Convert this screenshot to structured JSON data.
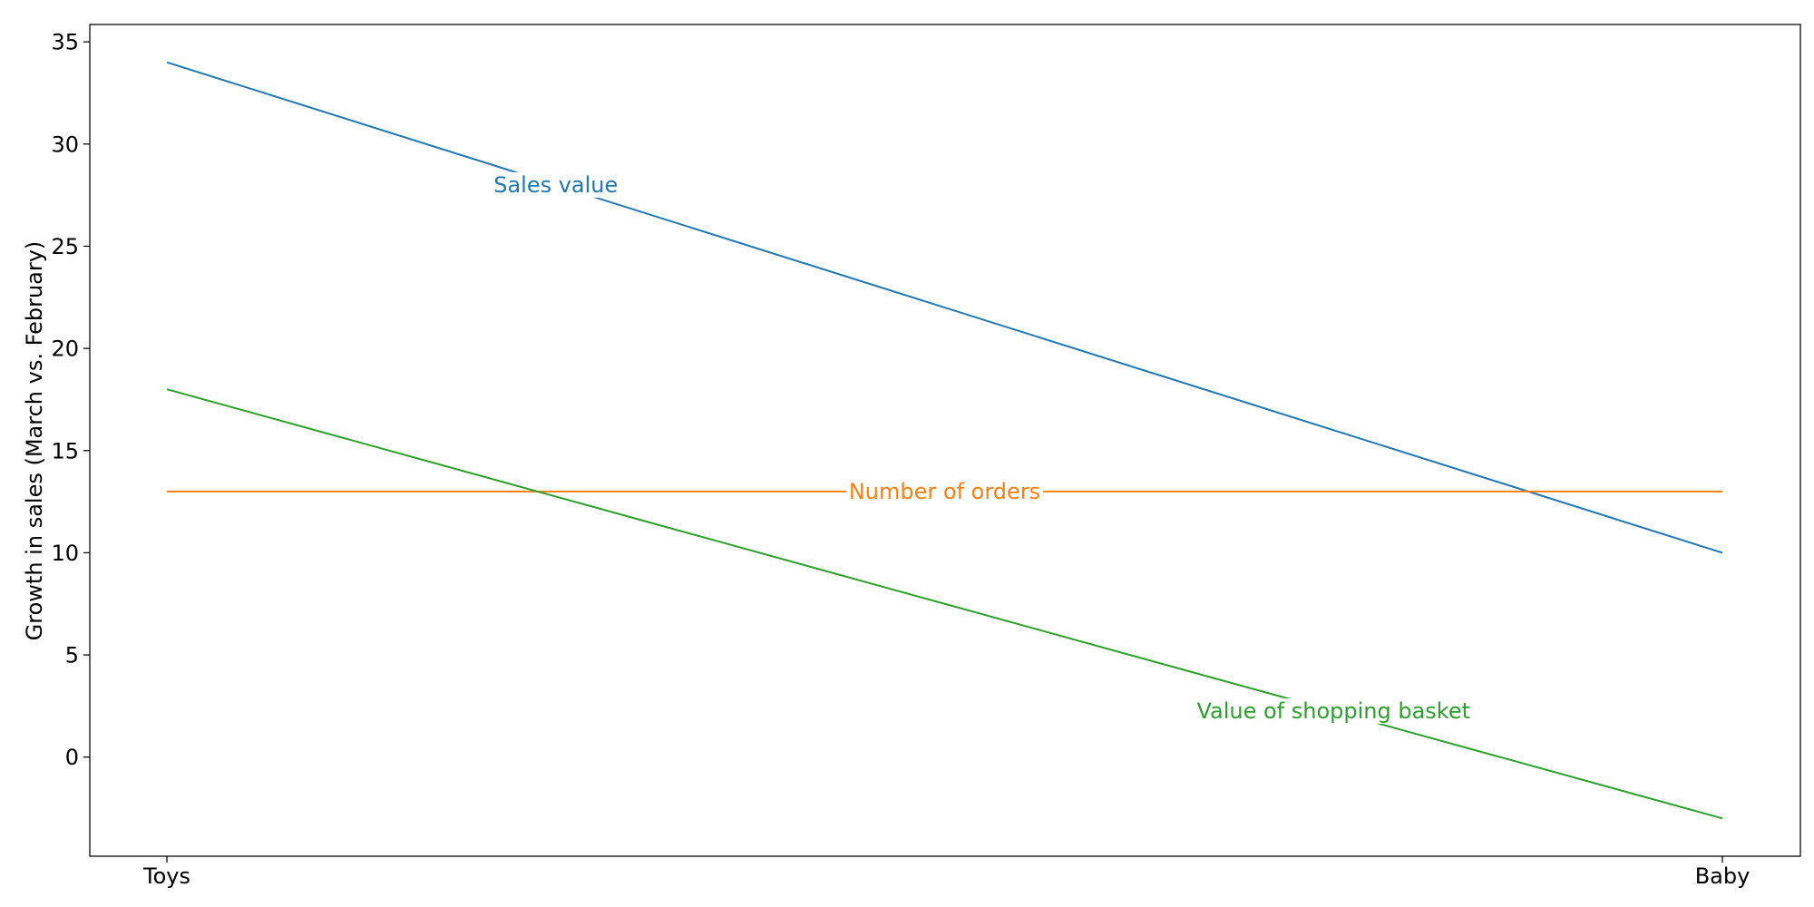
{
  "chart_data": {
    "type": "line",
    "categories": [
      "Toys",
      "Baby"
    ],
    "ylabel": "Growth in sales (March vs. February)",
    "xlabel": "",
    "ylim": [
      -4.85,
      35.85
    ],
    "yticks": [
      0,
      5,
      10,
      15,
      20,
      25,
      30,
      35
    ],
    "grid": false,
    "series": [
      {
        "name": "Sales value",
        "values": [
          34,
          10
        ],
        "color": "#1f77b4",
        "label_at": 0.25
      },
      {
        "name": "Number of orders",
        "values": [
          13,
          13
        ],
        "color": "#ff7f0e",
        "label_at": 0.5
      },
      {
        "name": "Value of shopping basket",
        "values": [
          18,
          -3
        ],
        "color": "#2ca02c",
        "label_at": 0.75
      }
    ]
  }
}
